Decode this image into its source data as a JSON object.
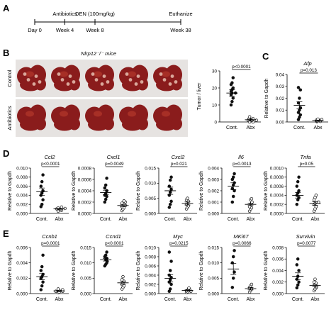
{
  "panels": {
    "a": "A",
    "b": "B",
    "c": "C",
    "d": "D",
    "e": "E"
  },
  "timeline": {
    "events": [
      {
        "label": "Day 0",
        "week": 0,
        "position": "below"
      },
      {
        "label": "Antibiotics",
        "week": 4,
        "position": "above"
      },
      {
        "label": "Week 4",
        "week": 4,
        "position": "below"
      },
      {
        "label": "DEN (100mg/kg)",
        "week": 8,
        "position": "above"
      },
      {
        "label": "Week 8",
        "week": 8,
        "position": "below"
      },
      {
        "label": "Euthanize",
        "week": 38,
        "position": "above"
      },
      {
        "label": "Week 38",
        "week": 38,
        "position": "below"
      }
    ]
  },
  "mice": {
    "title": "Nlrp12⁻/⁻ mice",
    "rows": [
      "Control",
      "Antibiotics"
    ],
    "liver_count_per_row": 5,
    "colors": {
      "liver": "#8a1c1c",
      "liver_light": "#c04030",
      "background": "#e6e3e1"
    }
  },
  "legend_groups": [
    "Cont.",
    "Abx"
  ],
  "chart_data": [
    {
      "id": "tumor",
      "type": "scatter",
      "title": "",
      "ylabel": "Tumor / liver",
      "ylim": [
        0,
        30
      ],
      "yticks": [
        "0",
        "10",
        "20",
        "30"
      ],
      "categories": [
        "Cont.",
        "Abx"
      ],
      "pvalue": "p<0.0001",
      "groups": [
        {
          "values": [
            10,
            12,
            14,
            16,
            17,
            17,
            18,
            19,
            20,
            22,
            23,
            26
          ],
          "mean": 17,
          "sem": 2,
          "fill": "filled"
        },
        {
          "values": [
            0,
            0,
            1,
            1,
            1,
            1,
            2,
            2,
            2,
            3
          ],
          "mean": 1.3,
          "sem": 0.4,
          "fill": "open"
        }
      ]
    },
    {
      "id": "afp",
      "type": "scatter",
      "title": "Afp",
      "ylabel": "Relative to Gapdh",
      "ylim": [
        0,
        0.04
      ],
      "yticks": [
        "0.00",
        "0.01",
        "0.02",
        "0.03",
        "0.04"
      ],
      "categories": [
        "Cont.",
        "Abx"
      ],
      "pvalue": "p=0.013",
      "groups": [
        {
          "values": [
            0.002,
            0.004,
            0.006,
            0.008,
            0.01,
            0.012,
            0.016,
            0.02,
            0.027,
            0.029
          ],
          "mean": 0.014,
          "sem": 0.003,
          "fill": "filled"
        },
        {
          "values": [
            0.0003,
            0.0005,
            0.0008,
            0.001,
            0.0012,
            0.0015,
            0.002,
            0.0024
          ],
          "mean": 0.0013,
          "sem": 0.0003,
          "fill": "open"
        }
      ]
    },
    {
      "id": "ccl2",
      "type": "scatter",
      "title": "Ccl2",
      "ylabel": "Relative to Gapdh",
      "ylim": [
        0,
        0.01
      ],
      "yticks": [
        "0.000",
        "0.002",
        "0.004",
        "0.006",
        "0.008",
        "0.010"
      ],
      "categories": [
        "Cont.",
        "Abx"
      ],
      "pvalue": "p<0.0001",
      "groups": [
        {
          "values": [
            0.0015,
            0.002,
            0.003,
            0.004,
            0.0045,
            0.005,
            0.006,
            0.007,
            0.0085
          ],
          "mean": 0.0048,
          "sem": 0.0008,
          "fill": "filled"
        },
        {
          "values": [
            0.0005,
            0.0007,
            0.0008,
            0.0009,
            0.001,
            0.0011,
            0.0012,
            0.0014
          ],
          "mean": 0.001,
          "sem": 0.0001,
          "fill": "open"
        }
      ]
    },
    {
      "id": "cxcl1",
      "type": "scatter",
      "title": "Cxcl1",
      "ylabel": "Relative to Gapdh",
      "ylim": [
        0,
        0.0008
      ],
      "yticks": [
        "0.0000",
        "0.0002",
        "0.0004",
        "0.0006",
        "0.0008"
      ],
      "categories": [
        "Cont.",
        "Abx"
      ],
      "pvalue": "p=0.0049",
      "groups": [
        {
          "values": [
            0.0002,
            0.00025,
            0.0003,
            0.00032,
            0.00035,
            0.0004,
            0.00045,
            0.0005,
            0.00062
          ],
          "mean": 0.00037,
          "sem": 4e-05,
          "fill": "filled"
        },
        {
          "values": [
            5e-05,
            8e-05,
            0.0001,
            0.00012,
            0.00014,
            0.00016,
            0.00018,
            0.0002,
            0.00022
          ],
          "mean": 0.00014,
          "sem": 2e-05,
          "fill": "open"
        }
      ]
    },
    {
      "id": "cxcl2",
      "type": "scatter",
      "title": "Cxcl2",
      "ylabel": "Relative to Gapdh",
      "ylim": [
        0,
        0.015
      ],
      "yticks": [
        "0.000",
        "0.005",
        "0.010",
        "0.015"
      ],
      "categories": [
        "Cont.",
        "Abx"
      ],
      "pvalue": "p=0.021",
      "groups": [
        {
          "values": [
            0.002,
            0.003,
            0.004,
            0.006,
            0.007,
            0.008,
            0.009,
            0.011,
            0.012
          ],
          "mean": 0.0075,
          "sem": 0.0012,
          "fill": "filled"
        },
        {
          "values": [
            0.0015,
            0.002,
            0.0025,
            0.003,
            0.0035,
            0.004,
            0.0045,
            0.005
          ],
          "mean": 0.0033,
          "sem": 0.0005,
          "fill": "open"
        }
      ]
    },
    {
      "id": "il6",
      "type": "scatter",
      "title": "Il6",
      "ylabel": "Relative to Gapdh",
      "ylim": [
        0,
        0.004
      ],
      "yticks": [
        "0.000",
        "0.001",
        "0.002",
        "0.003",
        "0.004"
      ],
      "categories": [
        "Cont.",
        "Abx"
      ],
      "pvalue": "p=0.0013",
      "groups": [
        {
          "values": [
            0.001,
            0.0015,
            0.002,
            0.0022,
            0.0025,
            0.0027,
            0.003,
            0.0032,
            0.0035
          ],
          "mean": 0.0024,
          "sem": 0.0003,
          "fill": "filled"
        },
        {
          "values": [
            0.0002,
            0.0004,
            0.0005,
            0.0006,
            0.0008,
            0.0009,
            0.001,
            0.0012,
            0.0013
          ],
          "mean": 0.0008,
          "sem": 0.0001,
          "fill": "open"
        }
      ]
    },
    {
      "id": "tnfa",
      "type": "scatter",
      "title": "Tnfa",
      "ylabel": "Relative to Gapdh",
      "ylim": [
        0,
        0.001
      ],
      "yticks": [
        "0.0000",
        "0.0002",
        "0.0004",
        "0.0006",
        "0.0008",
        "0.0010"
      ],
      "categories": [
        "Cont.",
        "Abx"
      ],
      "pvalue": "p=0.05",
      "groups": [
        {
          "values": [
            0.0002,
            0.0003,
            0.00035,
            0.0004,
            0.00045,
            0.0005,
            0.0006,
            0.0007,
            0.0008
          ],
          "mean": 0.0004,
          "sem": 6e-05,
          "fill": "filled"
        },
        {
          "values": [
            5e-05,
            0.0001,
            0.00015,
            0.0002,
            0.00022,
            0.00025,
            0.0003,
            0.00035,
            0.0004
          ],
          "mean": 0.00022,
          "sem": 4e-05,
          "fill": "open"
        }
      ]
    },
    {
      "id": "ccnb1",
      "type": "scatter",
      "title": "Ccnb1",
      "ylabel": "Relative to Gapdh",
      "ylim": [
        0,
        0.006
      ],
      "yticks": [
        "0.000",
        "0.002",
        "0.004",
        "0.006"
      ],
      "categories": [
        "Cont.",
        "Abx"
      ],
      "pvalue": "p=0.0001",
      "groups": [
        {
          "values": [
            0.0005,
            0.001,
            0.0015,
            0.002,
            0.0022,
            0.0025,
            0.003,
            0.0035,
            0.005
          ],
          "mean": 0.0022,
          "sem": 0.0004,
          "fill": "filled"
        },
        {
          "values": [
            0.0001,
            0.0002,
            0.0003,
            0.0003,
            0.0004,
            0.0005,
            0.0006
          ],
          "mean": 0.00035,
          "sem": 5e-05,
          "fill": "open"
        }
      ]
    },
    {
      "id": "ccnd1",
      "type": "scatter",
      "title": "Ccnd1",
      "ylabel": "Relative to Gapdh",
      "ylim": [
        0,
        0.015
      ],
      "yticks": [
        "0.000",
        "0.005",
        "0.010",
        "0.015"
      ],
      "categories": [
        "Cont.",
        "Abx"
      ],
      "pvalue": "p<0.0001",
      "groups": [
        {
          "values": [
            0.009,
            0.0095,
            0.01,
            0.0105,
            0.011,
            0.0115,
            0.012,
            0.0125,
            0.0135
          ],
          "mean": 0.011,
          "sem": 0.0004,
          "fill": "filled"
        },
        {
          "values": [
            0.0015,
            0.002,
            0.0025,
            0.003,
            0.0035,
            0.004,
            0.0045,
            0.0055
          ],
          "mean": 0.0035,
          "sem": 0.0005,
          "fill": "open"
        }
      ]
    },
    {
      "id": "myc",
      "type": "scatter",
      "title": "Myc",
      "ylabel": "Relative to Gapdh",
      "ylim": [
        0,
        0.01
      ],
      "yticks": [
        "0.000",
        "0.002",
        "0.004",
        "0.006",
        "0.008",
        "0.010"
      ],
      "categories": [
        "Cont.",
        "Abx"
      ],
      "pvalue": "p=0.0215",
      "groups": [
        {
          "values": [
            0.0005,
            0.001,
            0.002,
            0.0025,
            0.003,
            0.0035,
            0.004,
            0.005,
            0.007,
            0.009
          ],
          "mean": 0.0033,
          "sem": 0.0008,
          "fill": "filled"
        },
        {
          "values": [
            0.0002,
            0.0004,
            0.0005,
            0.0006,
            0.0008,
            0.001,
            0.0012
          ],
          "mean": 0.0007,
          "sem": 0.0001,
          "fill": "open"
        }
      ]
    },
    {
      "id": "mki67",
      "type": "scatter",
      "title": "MKi67",
      "ylabel": "Relative to Gapdh",
      "ylim": [
        0,
        0.015
      ],
      "yticks": [
        "0.000",
        "0.005",
        "0.010",
        "0.015"
      ],
      "categories": [
        "Cont.",
        "Abx"
      ],
      "pvalue": "p=0.0066",
      "groups": [
        {
          "values": [
            0.002,
            0.005,
            0.007,
            0.01,
            0.012,
            0.014
          ],
          "mean": 0.008,
          "sem": 0.0018,
          "fill": "filled"
        },
        {
          "values": [
            0.0005,
            0.001,
            0.0015,
            0.002,
            0.0025,
            0.003
          ],
          "mean": 0.0016,
          "sem": 0.0004,
          "fill": "open"
        }
      ]
    },
    {
      "id": "survivin",
      "type": "scatter",
      "title": "Survivin",
      "ylabel": "Relative to Gapdh",
      "ylim": [
        0,
        0.008
      ],
      "yticks": [
        "0.000",
        "0.002",
        "0.004",
        "0.006",
        "0.008"
      ],
      "categories": [
        "Cont.",
        "Abx"
      ],
      "pvalue": "p=0.0077",
      "groups": [
        {
          "values": [
            0.001,
            0.0015,
            0.002,
            0.0025,
            0.003,
            0.004,
            0.005,
            0.006
          ],
          "mean": 0.003,
          "sem": 0.0006,
          "fill": "filled"
        },
        {
          "values": [
            0.0005,
            0.0008,
            0.001,
            0.0012,
            0.0015,
            0.0018,
            0.002,
            0.0025
          ],
          "mean": 0.0014,
          "sem": 0.0002,
          "fill": "open"
        }
      ]
    }
  ]
}
